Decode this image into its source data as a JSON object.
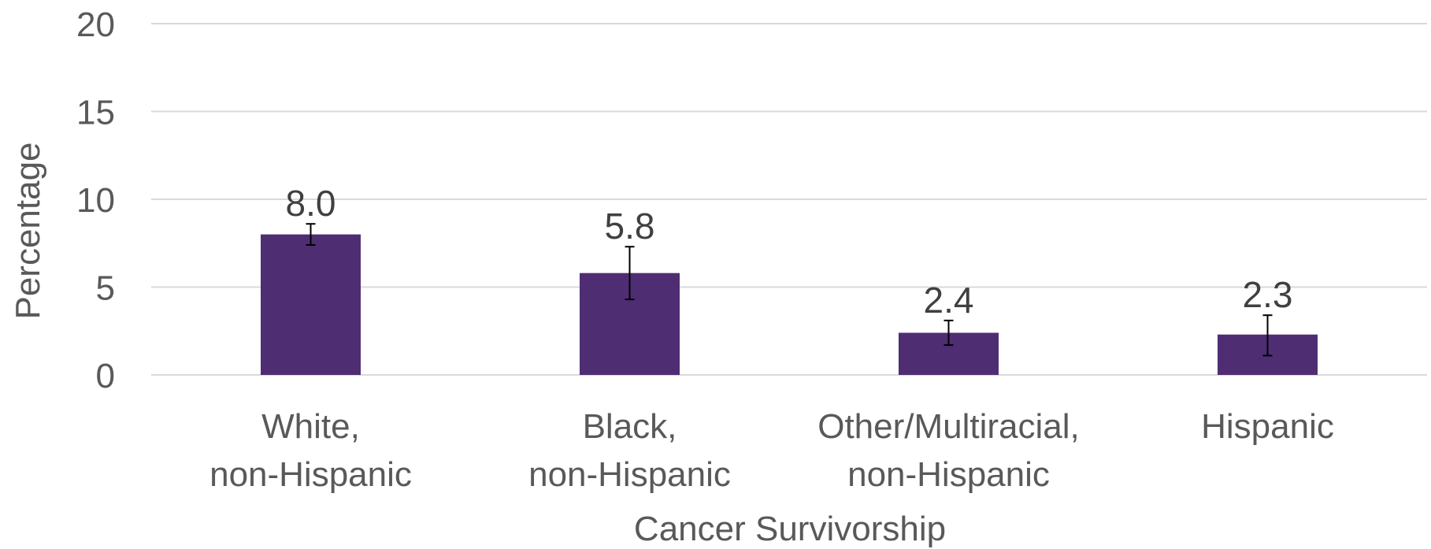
{
  "chart_data": {
    "type": "bar",
    "title": "",
    "xlabel": "Cancer Survivorship",
    "ylabel": "Percentage",
    "ylim": [
      0,
      20
    ],
    "yticks": [
      0,
      5,
      10,
      15,
      20
    ],
    "grid": true,
    "legend": "none",
    "bar_color": "#4f2d73",
    "categories": [
      [
        "White,",
        "non-Hispanic"
      ],
      [
        "Black,",
        "non-Hispanic"
      ],
      [
        "Other/Multiracial,",
        "non-Hispanic"
      ],
      [
        "Hispanic"
      ]
    ],
    "values": [
      8.0,
      5.8,
      2.4,
      2.3
    ],
    "data_labels": [
      "8.0",
      "5.8",
      "2.4",
      "2.3"
    ],
    "error_bars": [
      {
        "low": 7.4,
        "high": 8.6
      },
      {
        "low": 4.3,
        "high": 7.3
      },
      {
        "low": 1.7,
        "high": 3.1
      },
      {
        "low": 1.1,
        "high": 3.4
      }
    ]
  }
}
